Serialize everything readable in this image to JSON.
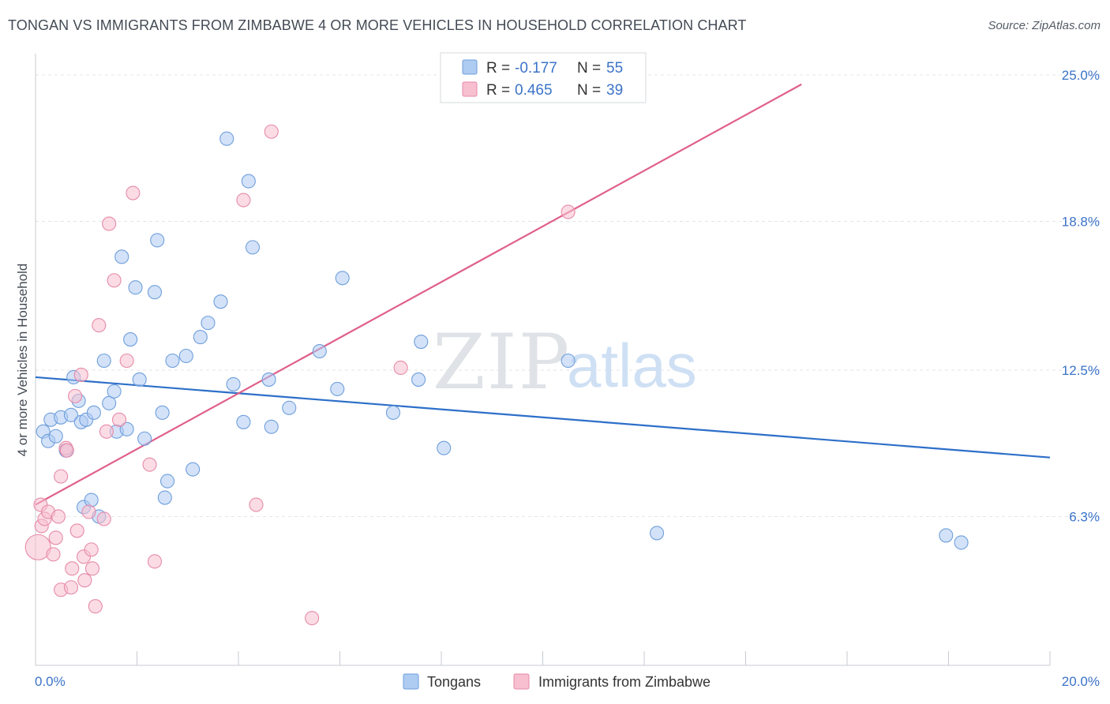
{
  "title": "TONGAN VS IMMIGRANTS FROM ZIMBABWE 4 OR MORE VEHICLES IN HOUSEHOLD CORRELATION CHART",
  "source": "Source: ZipAtlas.com",
  "watermark": {
    "zip": "ZIP",
    "atlas": "atlas"
  },
  "chart_data": {
    "type": "scatter",
    "ylabel": "4 or more Vehicles in Household",
    "xlim": [
      0,
      20
    ],
    "ylim": [
      0,
      25.9
    ],
    "x_tick_labels": [
      "0.0%",
      "20.0%"
    ],
    "y_ticks": [
      6.3,
      12.5,
      18.8,
      25.0
    ],
    "y_tick_labels": [
      "6.3%",
      "12.5%",
      "18.8%",
      "25.0%"
    ],
    "colors": {
      "tongans_fill": "#aecbf2",
      "tongans_stroke": "#6f9fdc",
      "tongans_line": "#2d6fc9",
      "zim_fill": "#f7bfd0",
      "zim_stroke": "#e68aa8",
      "zim_line": "#e0608a",
      "accent_text": "#3b73c8",
      "grid": "#e3e6ea"
    },
    "legend_box": [
      {
        "r_label": "R =",
        "r_value": "-0.177",
        "n_label": "N =",
        "n_value": "55"
      },
      {
        "r_label": "R =",
        "r_value": "0.465",
        "n_label": "N =",
        "n_value": "39"
      }
    ],
    "series": [
      {
        "name": "Tongans",
        "trend": {
          "x": [
            0,
            20
          ],
          "y": [
            12.2,
            8.8
          ]
        },
        "points": [
          [
            0.15,
            9.9
          ],
          [
            0.25,
            9.5
          ],
          [
            0.3,
            10.4
          ],
          [
            0.4,
            9.7
          ],
          [
            0.5,
            10.5
          ],
          [
            0.6,
            9.1
          ],
          [
            0.7,
            10.6
          ],
          [
            0.75,
            12.2
          ],
          [
            0.85,
            11.2
          ],
          [
            0.9,
            10.3
          ],
          [
            0.95,
            6.7
          ],
          [
            1.0,
            10.4
          ],
          [
            1.1,
            7.0
          ],
          [
            1.15,
            10.7
          ],
          [
            1.25,
            6.3
          ],
          [
            1.35,
            12.9
          ],
          [
            1.45,
            11.1
          ],
          [
            1.55,
            11.6
          ],
          [
            1.6,
            9.9
          ],
          [
            1.7,
            17.3
          ],
          [
            1.8,
            10.0
          ],
          [
            1.87,
            13.8
          ],
          [
            1.97,
            16.0
          ],
          [
            2.05,
            12.1
          ],
          [
            2.15,
            9.6
          ],
          [
            2.35,
            15.8
          ],
          [
            2.4,
            18.0
          ],
          [
            2.5,
            10.7
          ],
          [
            2.55,
            7.1
          ],
          [
            2.6,
            7.8
          ],
          [
            2.7,
            12.9
          ],
          [
            2.97,
            13.1
          ],
          [
            3.1,
            8.3
          ],
          [
            3.25,
            13.9
          ],
          [
            3.4,
            14.5
          ],
          [
            3.65,
            15.4
          ],
          [
            3.77,
            22.3
          ],
          [
            3.9,
            11.9
          ],
          [
            4.1,
            10.3
          ],
          [
            4.2,
            20.5
          ],
          [
            4.28,
            17.7
          ],
          [
            4.6,
            12.1
          ],
          [
            4.65,
            10.1
          ],
          [
            5.0,
            10.9
          ],
          [
            5.6,
            13.3
          ],
          [
            5.95,
            11.7
          ],
          [
            6.05,
            16.4
          ],
          [
            7.05,
            10.7
          ],
          [
            7.55,
            12.1
          ],
          [
            7.6,
            13.7
          ],
          [
            8.05,
            9.2
          ],
          [
            10.5,
            12.9
          ],
          [
            12.25,
            5.6
          ],
          [
            17.95,
            5.5
          ],
          [
            18.25,
            5.2
          ]
        ]
      },
      {
        "name": "Immigrants from Zimbabwe",
        "trend": {
          "x": [
            0,
            15.1
          ],
          "y": [
            6.8,
            24.6
          ]
        },
        "points": [
          [
            0.05,
            5.0
          ],
          [
            0.1,
            6.8
          ],
          [
            0.12,
            5.9
          ],
          [
            0.18,
            6.2
          ],
          [
            0.25,
            6.5
          ],
          [
            0.35,
            4.7
          ],
          [
            0.4,
            5.4
          ],
          [
            0.45,
            6.3
          ],
          [
            0.5,
            3.2
          ],
          [
            0.5,
            8.0
          ],
          [
            0.6,
            9.2
          ],
          [
            0.62,
            9.1
          ],
          [
            0.7,
            3.3
          ],
          [
            0.72,
            4.1
          ],
          [
            0.78,
            11.4
          ],
          [
            0.82,
            5.7
          ],
          [
            0.9,
            12.3
          ],
          [
            0.95,
            4.6
          ],
          [
            0.97,
            3.6
          ],
          [
            1.05,
            6.5
          ],
          [
            1.1,
            4.9
          ],
          [
            1.12,
            4.1
          ],
          [
            1.18,
            2.5
          ],
          [
            1.25,
            14.4
          ],
          [
            1.35,
            6.2
          ],
          [
            1.4,
            9.9
          ],
          [
            1.45,
            18.7
          ],
          [
            1.55,
            16.3
          ],
          [
            1.65,
            10.4
          ],
          [
            1.8,
            12.9
          ],
          [
            1.92,
            20.0
          ],
          [
            2.25,
            8.5
          ],
          [
            2.35,
            4.4
          ],
          [
            4.1,
            19.7
          ],
          [
            4.35,
            6.8
          ],
          [
            4.65,
            22.6
          ],
          [
            5.45,
            2.0
          ],
          [
            7.2,
            12.6
          ],
          [
            10.5,
            19.2
          ]
        ]
      }
    ]
  },
  "bottom_legend": [
    {
      "label": "Tongans"
    },
    {
      "label": "Immigrants from Zimbabwe"
    }
  ]
}
